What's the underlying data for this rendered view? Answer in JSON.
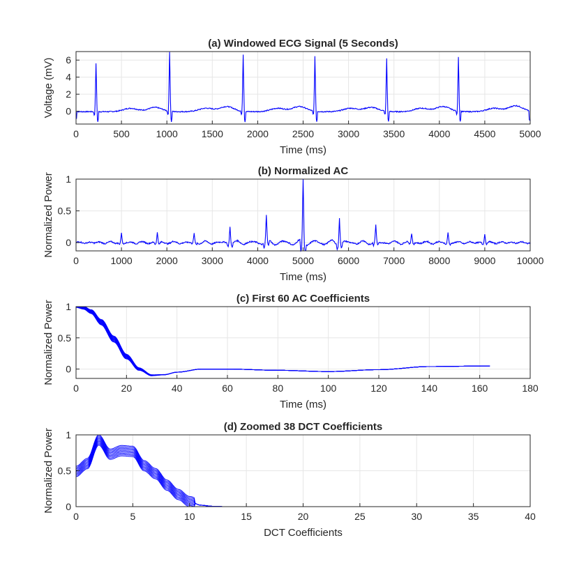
{
  "chart_data": [
    {
      "type": "line",
      "title": "(a) Windowed ECG Signal (5 Seconds)",
      "xlabel": "Time (ms)",
      "ylabel": "Voltage (mV)",
      "xlim": [
        0,
        5000
      ],
      "ylim": [
        -1.5,
        7
      ],
      "xticks": [
        0,
        500,
        1000,
        1500,
        2000,
        2500,
        3000,
        3500,
        4000,
        4500,
        5000
      ],
      "yticks": [
        0,
        2,
        4,
        6
      ],
      "grid": true,
      "color": "#0000ff",
      "series": [
        {
          "peaks": [
            {
              "x": 220,
              "y": 5.7
            },
            {
              "x": 1030,
              "y": 7.0
            },
            {
              "x": 1840,
              "y": 6.7
            },
            {
              "x": 2630,
              "y": 6.4
            },
            {
              "x": 3420,
              "y": 6.2
            },
            {
              "x": 4210,
              "y": 6.4
            }
          ],
          "t_waves": [
            {
              "x": 600,
              "y": 0.4
            },
            {
              "x": 870,
              "y": 0.5
            },
            {
              "x": 1430,
              "y": 0.4
            },
            {
              "x": 1660,
              "y": 0.6
            },
            {
              "x": 2220,
              "y": 0.4
            },
            {
              "x": 2460,
              "y": 0.6
            },
            {
              "x": 3020,
              "y": 0.4
            },
            {
              "x": 3250,
              "y": 0.5
            },
            {
              "x": 3800,
              "y": 0.4
            },
            {
              "x": 4040,
              "y": 0.6
            },
            {
              "x": 4600,
              "y": 0.4
            },
            {
              "x": 4840,
              "y": 0.7
            }
          ]
        }
      ]
    },
    {
      "type": "line",
      "title": "(b) Normalized AC",
      "xlabel": "Time (ms)",
      "ylabel": "Normalized Power",
      "xlim": [
        0,
        10000
      ],
      "ylim": [
        -0.13,
        1
      ],
      "xticks": [
        0,
        1000,
        2000,
        3000,
        4000,
        5000,
        6000,
        7000,
        8000,
        9000,
        10000
      ],
      "yticks": [
        0,
        0.5,
        1
      ],
      "grid": true,
      "color": "#0000ff",
      "series": [
        {
          "peaks": [
            {
              "x": 1000,
              "y": 0.14
            },
            {
              "x": 1790,
              "y": 0.16
            },
            {
              "x": 2600,
              "y": 0.15
            },
            {
              "x": 3390,
              "y": 0.27
            },
            {
              "x": 4190,
              "y": 0.41
            },
            {
              "x": 5000,
              "y": 1.0
            },
            {
              "x": 5800,
              "y": 0.41
            },
            {
              "x": 6600,
              "y": 0.27
            },
            {
              "x": 7390,
              "y": 0.15
            },
            {
              "x": 8190,
              "y": 0.16
            },
            {
              "x": 9000,
              "y": 0.14
            }
          ]
        }
      ]
    },
    {
      "type": "line",
      "title": "(c) First 60 AC Coefficients",
      "xlabel": "Time (ms)",
      "ylabel": "Normalized Power",
      "xlim": [
        0,
        180
      ],
      "ylim": [
        -0.15,
        1
      ],
      "xticks": [
        0,
        20,
        40,
        60,
        80,
        100,
        120,
        140,
        160,
        180
      ],
      "yticks": [
        0,
        0.5,
        1
      ],
      "grid": true,
      "color": "#0000ff",
      "series": [
        {
          "x": [
            0,
            3,
            6,
            10,
            15,
            20,
            25,
            30,
            35,
            40,
            50,
            60,
            80,
            100,
            120,
            140,
            164
          ],
          "y": [
            1.0,
            0.98,
            0.92,
            0.75,
            0.48,
            0.2,
            0.0,
            -0.1,
            -0.09,
            -0.05,
            0.0,
            0.0,
            -0.02,
            -0.04,
            -0.01,
            0.04,
            0.05
          ]
        }
      ]
    },
    {
      "type": "line",
      "title": "(d) Zoomed 38 DCT Coefficients",
      "xlabel": "DCT Coefficients",
      "ylabel": "Normalized Power",
      "xlim": [
        0,
        40
      ],
      "ylim": [
        0,
        1
      ],
      "xticks": [
        0,
        5,
        10,
        15,
        20,
        25,
        30,
        35,
        40
      ],
      "yticks": [
        0,
        0.5,
        1
      ],
      "grid": true,
      "color": "#0000ff",
      "series": [
        {
          "x": [
            0,
            1,
            2,
            3,
            4,
            5,
            6,
            7,
            8,
            9,
            10,
            11,
            12,
            13,
            14,
            15,
            20,
            25,
            30,
            37
          ],
          "y": [
            0.49,
            0.6,
            0.93,
            0.73,
            0.78,
            0.77,
            0.57,
            0.46,
            0.3,
            0.17,
            0.07,
            0.02,
            0.005,
            0.0,
            0.0,
            0.0,
            0.0,
            0.0,
            0.0,
            0.0
          ]
        }
      ]
    }
  ]
}
